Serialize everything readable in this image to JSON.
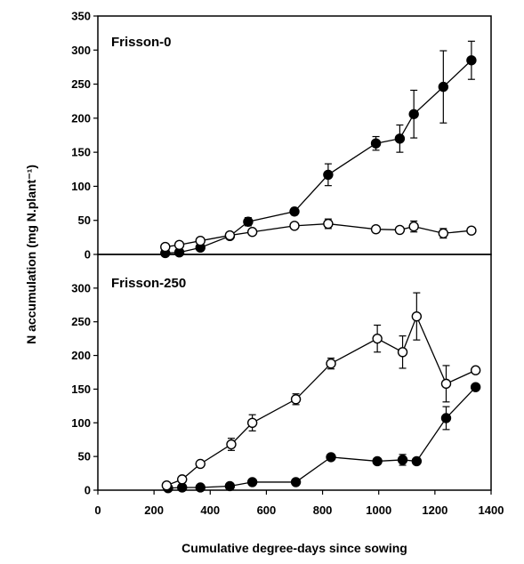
{
  "chart_data": {
    "type": "line",
    "xlabel": "Cumulative degree-days since sowing",
    "ylabel": "N accumulation (mg N.plant⁻¹)",
    "xlim": [
      0,
      1400
    ],
    "xticks": [
      0,
      200,
      400,
      600,
      800,
      1000,
      1200,
      1400
    ],
    "panels": [
      {
        "title": "Frisson-0",
        "ylim": [
          0,
          350
        ],
        "yticks": [
          0,
          50,
          100,
          150,
          200,
          250,
          300,
          350
        ],
        "series": [
          {
            "marker": "filled",
            "points": [
              {
                "x": 240,
                "y": 2
              },
              {
                "x": 290,
                "y": 3
              },
              {
                "x": 365,
                "y": 10
              },
              {
                "x": 470,
                "y": 27
              },
              {
                "x": 535,
                "y": 48,
                "err": 6
              },
              {
                "x": 700,
                "y": 63,
                "err": 5
              },
              {
                "x": 820,
                "y": 117,
                "err": 16
              },
              {
                "x": 990,
                "y": 163,
                "err": 10
              },
              {
                "x": 1075,
                "y": 170,
                "err": 20
              },
              {
                "x": 1125,
                "y": 206,
                "err": 35
              },
              {
                "x": 1230,
                "y": 246,
                "err": 53
              },
              {
                "x": 1330,
                "y": 285,
                "err": 28
              }
            ]
          },
          {
            "marker": "open",
            "points": [
              {
                "x": 240,
                "y": 11
              },
              {
                "x": 290,
                "y": 14
              },
              {
                "x": 365,
                "y": 20
              },
              {
                "x": 470,
                "y": 28
              },
              {
                "x": 550,
                "y": 33
              },
              {
                "x": 700,
                "y": 42
              },
              {
                "x": 820,
                "y": 45,
                "err": 7
              },
              {
                "x": 990,
                "y": 37
              },
              {
                "x": 1075,
                "y": 36
              },
              {
                "x": 1125,
                "y": 41,
                "err": 8
              },
              {
                "x": 1230,
                "y": 31,
                "err": 7
              },
              {
                "x": 1330,
                "y": 35
              }
            ]
          }
        ]
      },
      {
        "title": "Frisson-250",
        "ylim": [
          0,
          350
        ],
        "yticks": [
          0,
          50,
          100,
          150,
          200,
          250,
          300
        ],
        "series": [
          {
            "marker": "filled",
            "points": [
              {
                "x": 250,
                "y": 3
              },
              {
                "x": 300,
                "y": 4
              },
              {
                "x": 365,
                "y": 4
              },
              {
                "x": 470,
                "y": 6
              },
              {
                "x": 550,
                "y": 12
              },
              {
                "x": 705,
                "y": 12
              },
              {
                "x": 830,
                "y": 49
              },
              {
                "x": 995,
                "y": 43
              },
              {
                "x": 1085,
                "y": 45,
                "err": 8
              },
              {
                "x": 1135,
                "y": 43
              },
              {
                "x": 1240,
                "y": 107,
                "err": 17
              },
              {
                "x": 1345,
                "y": 153
              }
            ]
          },
          {
            "marker": "open",
            "points": [
              {
                "x": 245,
                "y": 7
              },
              {
                "x": 300,
                "y": 16
              },
              {
                "x": 365,
                "y": 39
              },
              {
                "x": 475,
                "y": 68,
                "err": 9
              },
              {
                "x": 550,
                "y": 100,
                "err": 12
              },
              {
                "x": 705,
                "y": 135,
                "err": 8
              },
              {
                "x": 830,
                "y": 188,
                "err": 8
              },
              {
                "x": 995,
                "y": 225,
                "err": 20
              },
              {
                "x": 1085,
                "y": 205,
                "err": 24
              },
              {
                "x": 1135,
                "y": 258,
                "err": 35
              },
              {
                "x": 1240,
                "y": 158,
                "err": 27
              },
              {
                "x": 1345,
                "y": 178
              }
            ]
          }
        ]
      }
    ]
  }
}
